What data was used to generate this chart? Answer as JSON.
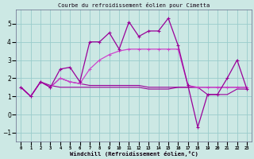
{
  "title": "Courbe du refroidissement éolien pour Cimetta",
  "xlabel": "Windchill (Refroidissement éolien,°C)",
  "bg_color": "#cce8e4",
  "grid_color": "#99cccc",
  "line_color": "#990099",
  "line_color2": "#cc44cc",
  "x_ticks": [
    0,
    1,
    2,
    3,
    4,
    5,
    6,
    7,
    8,
    9,
    10,
    11,
    12,
    13,
    14,
    15,
    16,
    17,
    18,
    19,
    20,
    21,
    22,
    23
  ],
  "ylim": [
    -1.5,
    5.8
  ],
  "xlim": [
    -0.5,
    23.5
  ],
  "series1_x": [
    0,
    1,
    2,
    3,
    4,
    5,
    6,
    7,
    8,
    9,
    10,
    11,
    12,
    13,
    14,
    15,
    16,
    17,
    18,
    19,
    20,
    21,
    22,
    23
  ],
  "series1_y": [
    1.5,
    1.0,
    1.8,
    1.5,
    2.5,
    2.6,
    1.8,
    4.0,
    4.0,
    4.5,
    3.6,
    5.1,
    4.3,
    4.6,
    4.6,
    5.3,
    3.8,
    1.6,
    -0.7,
    1.1,
    1.1,
    2.0,
    3.0,
    1.4
  ],
  "series2_x": [
    0,
    1,
    2,
    3,
    4,
    5,
    6,
    7,
    8,
    9,
    10,
    11,
    12,
    13,
    14,
    15,
    16,
    17,
    18,
    19,
    20,
    21,
    22,
    23
  ],
  "series2_y": [
    1.5,
    1.0,
    1.8,
    1.5,
    2.0,
    1.8,
    1.7,
    1.6,
    1.6,
    1.6,
    1.6,
    1.6,
    1.6,
    1.5,
    1.5,
    1.5,
    1.5,
    1.5,
    1.5,
    1.5,
    1.5,
    1.5,
    1.5,
    1.5
  ],
  "series3_x": [
    0,
    1,
    2,
    3,
    4,
    5,
    6,
    7,
    8,
    9,
    10,
    11,
    12,
    13,
    14,
    15,
    16,
    17,
    18,
    19,
    20,
    21,
    22,
    23
  ],
  "series3_y": [
    1.5,
    1.0,
    1.8,
    1.5,
    2.0,
    1.8,
    1.7,
    2.5,
    3.0,
    3.3,
    3.5,
    3.6,
    3.6,
    3.6,
    3.6,
    3.6,
    3.6,
    1.6,
    1.5,
    1.5,
    1.5,
    1.5,
    1.5,
    1.5
  ],
  "series4_x": [
    0,
    1,
    2,
    3,
    4,
    5,
    6,
    7,
    8,
    9,
    10,
    11,
    12,
    13,
    14,
    15,
    16,
    17,
    18,
    19,
    20,
    21,
    22,
    23
  ],
  "series4_y": [
    1.5,
    1.0,
    1.8,
    1.6,
    1.5,
    1.5,
    1.5,
    1.5,
    1.5,
    1.5,
    1.5,
    1.5,
    1.5,
    1.4,
    1.4,
    1.4,
    1.5,
    1.5,
    1.5,
    1.1,
    1.1,
    1.1,
    1.4,
    1.4
  ]
}
